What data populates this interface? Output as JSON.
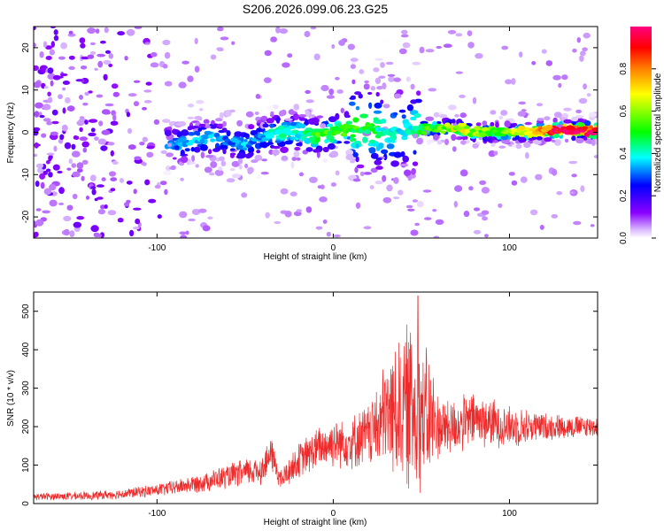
{
  "title": "S206.2026.099.06.23.G25",
  "chart_data": [
    {
      "type": "heatmap",
      "name": "spectrogram",
      "xlabel": "Height of straight line (km)",
      "ylabel": "Frequency (Hz)",
      "xlim": [
        -170,
        150
      ],
      "ylim": [
        -25,
        25
      ],
      "xticks": [
        -100,
        0,
        100
      ],
      "yticks": [
        -20,
        -10,
        0,
        10,
        20
      ],
      "xtick_labels": [
        "-100",
        "0",
        "100"
      ],
      "ytick_labels": [
        "-20",
        "-10",
        "0",
        "10",
        "20"
      ],
      "colorbar": {
        "label": "Normalized spectral amplitude",
        "range": [
          0.0,
          1.0
        ],
        "ticks": [
          0.0,
          0.2,
          0.4,
          0.6,
          0.8
        ],
        "tick_labels": [
          "0.0",
          "0.2",
          "0.4",
          "0.6",
          "0.8"
        ],
        "colormap": [
          "#ffffff",
          "#d9b8ff",
          "#8a00ff",
          "#0000ff",
          "#00ffff",
          "#00ff00",
          "#ffff00",
          "#ff8000",
          "#ff0000",
          "#ff0080"
        ]
      },
      "ridge": {
        "description": "dominant frequency track vs height",
        "x": [
          -90,
          -80,
          -70,
          -60,
          -50,
          -40,
          -30,
          -20,
          -10,
          0,
          10,
          20,
          30,
          40,
          50,
          60,
          70,
          80,
          90,
          100,
          110,
          120,
          130,
          140,
          150
        ],
        "y": [
          -3,
          -2,
          -1,
          -2,
          -3,
          -1,
          0,
          0,
          -1,
          0,
          1,
          1,
          0,
          0,
          1,
          1,
          1,
          0,
          0,
          0,
          0,
          0.5,
          0.5,
          0.5,
          0.5
        ],
        "amp": [
          0.3,
          0.35,
          0.35,
          0.3,
          0.35,
          0.3,
          0.45,
          0.4,
          0.5,
          0.5,
          0.5,
          0.5,
          0.4,
          0.35,
          0.5,
          0.55,
          0.65,
          0.6,
          0.55,
          0.6,
          0.7,
          0.85,
          0.95,
          0.95,
          0.9
        ]
      }
    },
    {
      "type": "line",
      "name": "snr",
      "xlabel": "Height of straight line (km)",
      "ylabel": "SNR (10 * v/v)",
      "xlim": [
        -170,
        150
      ],
      "ylim": [
        0,
        550
      ],
      "xticks": [
        -100,
        0,
        100
      ],
      "yticks": [
        0,
        100,
        200,
        300,
        400,
        500
      ],
      "xtick_labels": [
        "-100",
        "0",
        "100"
      ],
      "ytick_labels": [
        "0",
        "100",
        "200",
        "300",
        "400",
        "500"
      ],
      "color": "#ee2a2a",
      "envelope": {
        "x": [
          -170,
          -140,
          -120,
          -100,
          -80,
          -60,
          -40,
          -35,
          -30,
          -20,
          -10,
          0,
          10,
          20,
          25,
          30,
          40,
          45,
          50,
          55,
          60,
          70,
          80,
          90,
          100,
          110,
          120,
          130,
          150
        ],
        "mean": [
          18,
          20,
          25,
          35,
          50,
          70,
          90,
          130,
          60,
          110,
          140,
          160,
          160,
          180,
          200,
          230,
          250,
          260,
          230,
          220,
          200,
          200,
          220,
          210,
          200,
          200,
          200,
          200,
          200
        ],
        "spread": [
          10,
          12,
          14,
          18,
          25,
          35,
          45,
          50,
          30,
          50,
          60,
          70,
          75,
          90,
          120,
          160,
          220,
          260,
          220,
          180,
          90,
          80,
          80,
          70,
          60,
          50,
          40,
          35,
          30
        ]
      },
      "peak": {
        "x": 48,
        "y": 540
      }
    }
  ]
}
